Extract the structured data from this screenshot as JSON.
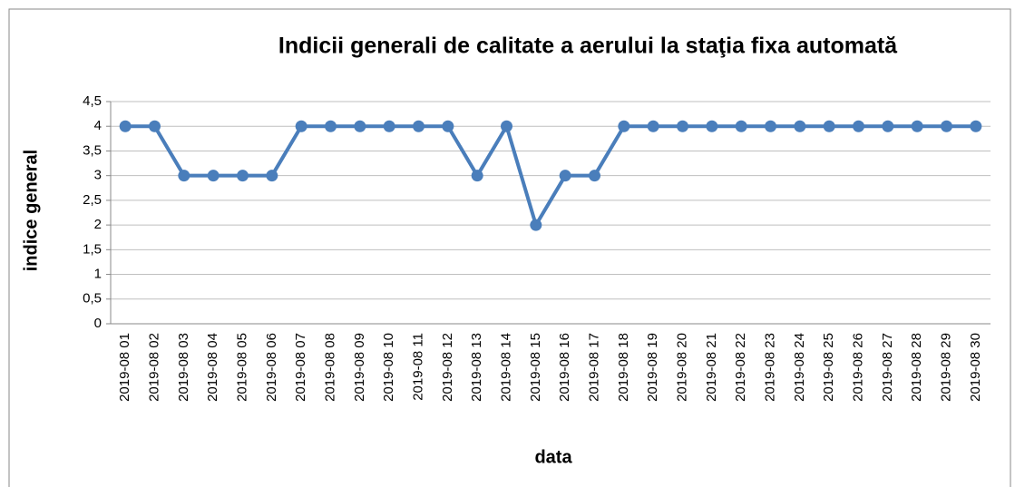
{
  "chart_data": {
    "type": "line",
    "title": "Indicii generali de calitate a aerului la staţia fixa automată",
    "x_label": "data",
    "y_label": "indice general",
    "categories": [
      "2019-08 01",
      "2019-08 02",
      "2019-08 03",
      "2019-08 04",
      "2019-08 05",
      "2019-08 06",
      "2019-08 07",
      "2019-08 08",
      "2019-08 09",
      "2019-08 10",
      "2019-08 11",
      "2019-08 12",
      "2019-08 13",
      "2019-08 14",
      "2019-08 15",
      "2019-08 16",
      "2019-08 17",
      "2019-08 18",
      "2019-08 19",
      "2019-08 20",
      "2019-08 21",
      "2019-08 22",
      "2019-08 23",
      "2019-08 24",
      "2019-08 25",
      "2019-08 26",
      "2019-08 27",
      "2019-08 28",
      "2019-08 29",
      "2019-08 30"
    ],
    "values": [
      4,
      4,
      3,
      3,
      3,
      3,
      4,
      4,
      4,
      4,
      4,
      4,
      3,
      4,
      2,
      3,
      3,
      4,
      4,
      4,
      4,
      4,
      4,
      4,
      4,
      4,
      4,
      4,
      4,
      4
    ],
    "color": "#4a7ebb",
    "ylim": [
      0,
      4.5
    ],
    "yticks": [
      0,
      {
        "value": 0.5,
        "label": "0,5"
      },
      1,
      {
        "value": 1.5,
        "label": "1,5"
      },
      2,
      {
        "value": 2.5,
        "label": "2,5"
      },
      3,
      {
        "value": 3.5,
        "label": "3,5"
      },
      4,
      {
        "value": 4.5,
        "label": "4,5"
      }
    ],
    "grid": true
  }
}
